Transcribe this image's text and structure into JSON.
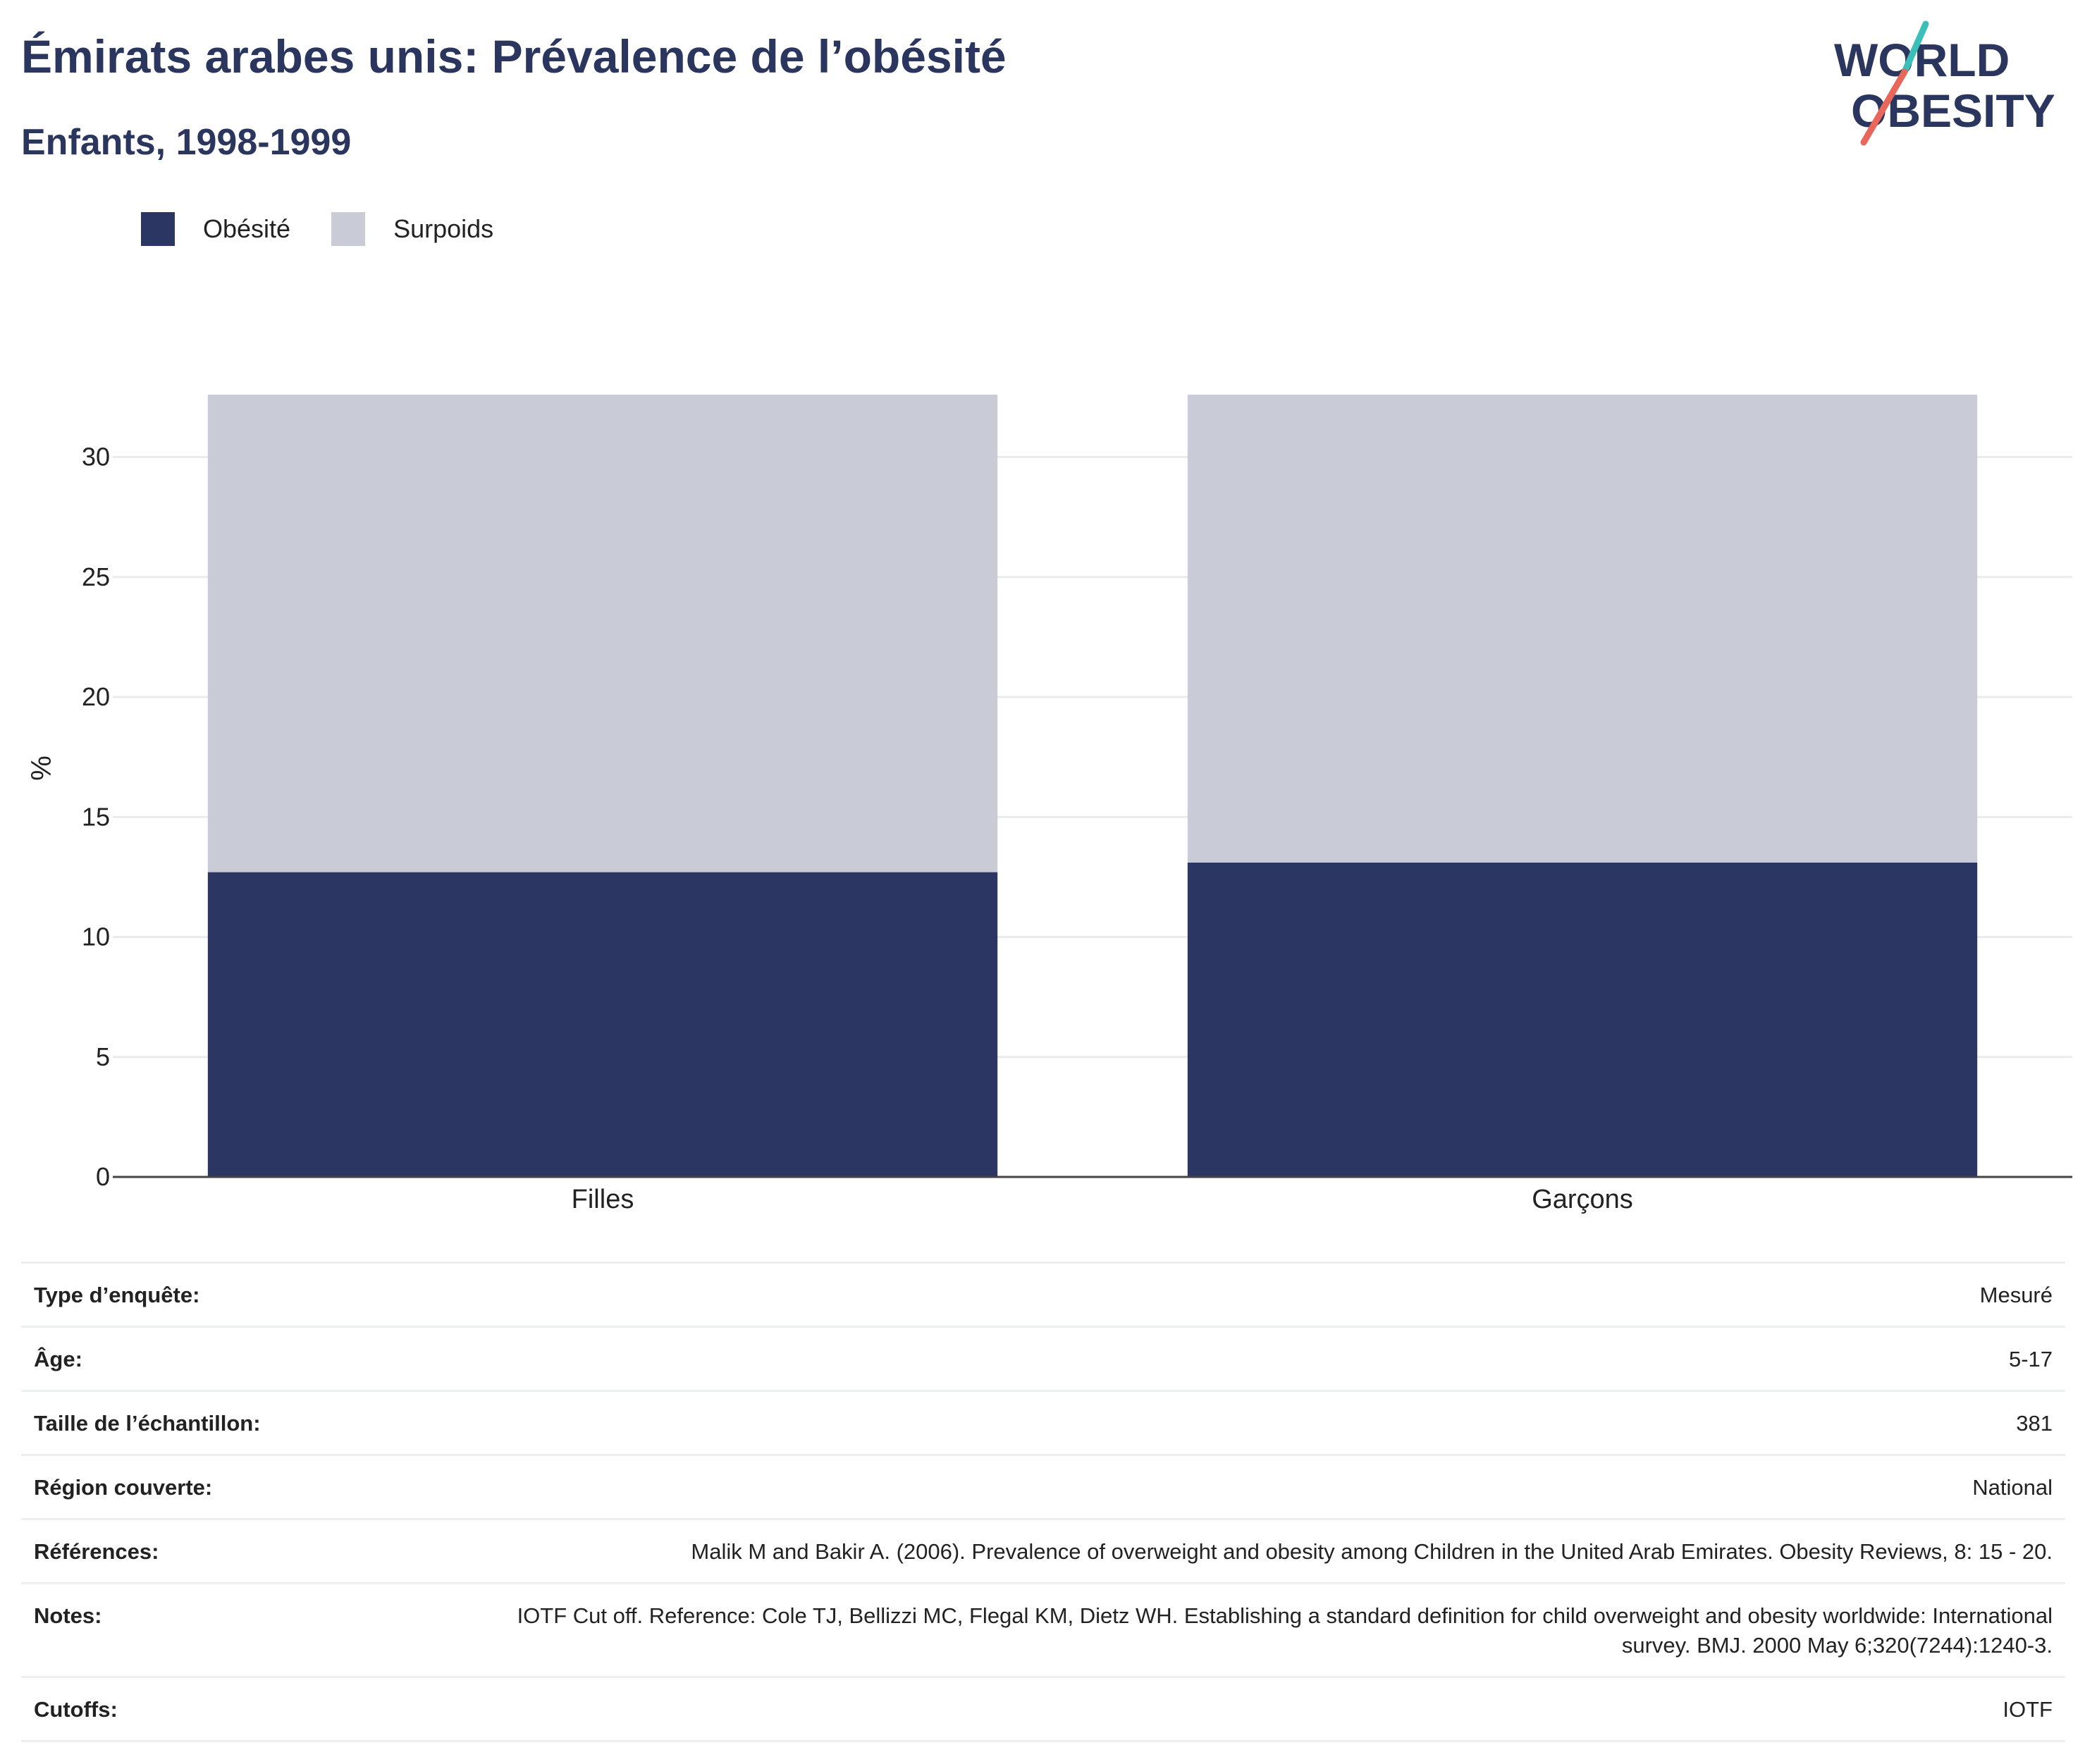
{
  "header": {
    "title": "Émirats arabes unis: Prévalence de l’obésité",
    "subtitle": "Enfants, 1998-1999"
  },
  "logo": {
    "line1": "WORLD",
    "line2": "OBESITY",
    "slash_colors": [
      "#3bbfb8",
      "#e8675a"
    ]
  },
  "colors": {
    "obesity": "#2b3663",
    "overweight": "#c9cbd7",
    "title": "#2b365f"
  },
  "chart_data": {
    "type": "bar",
    "stacked": true,
    "categories": [
      "Filles",
      "Garçons"
    ],
    "series": [
      {
        "name": "Obésité",
        "values": [
          12.7,
          13.1
        ]
      },
      {
        "name": "Surpoids",
        "values": [
          19.9,
          19.5
        ]
      }
    ],
    "ylabel": "%",
    "xlabel": "",
    "ylim": [
      0,
      32.6
    ],
    "yticks": [
      0,
      5,
      10,
      15,
      20,
      25,
      30
    ],
    "grid": true,
    "legend_position": "top-left"
  },
  "meta": [
    {
      "key": "Type d’enquête:",
      "value": "Mesuré"
    },
    {
      "key": "Âge:",
      "value": "5-17"
    },
    {
      "key": "Taille de l’échantillon:",
      "value": "381"
    },
    {
      "key": "Région couverte:",
      "value": "National"
    },
    {
      "key": "Références:",
      "value": "Malik M and Bakir A. (2006). Prevalence of overweight and obesity among Children in the United Arab Emirates. Obesity Reviews, 8: 15 - 20."
    },
    {
      "key": "Notes:",
      "value": "IOTF Cut off. Reference: Cole TJ, Bellizzi MC, Flegal KM, Dietz WH. Establishing a standard definition for child overweight and obesity worldwide: International survey. BMJ. 2000 May 6;320(7244):1240-3."
    },
    {
      "key": "Cutoffs:",
      "value": "IOTF"
    }
  ]
}
